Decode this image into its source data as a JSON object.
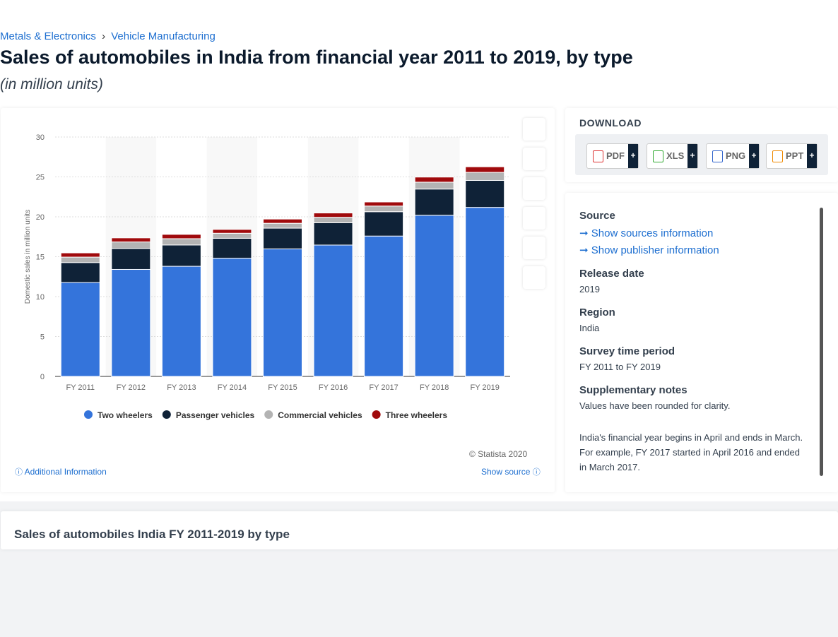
{
  "breadcrumb": [
    "Metals & Electronics",
    "Vehicle Manufacturing"
  ],
  "breadcrumb_separator": "›",
  "title": "Sales of automobiles in India from financial year 2011 to 2019, by type",
  "subtitle": "(in million units)",
  "chart_data": {
    "type": "bar",
    "stacked": true,
    "ylabel": "Domestic sales in million units",
    "categories": [
      "FY 2011",
      "FY 2012",
      "FY 2013",
      "FY 2014",
      "FY 2015",
      "FY 2016",
      "FY 2017",
      "FY 2018",
      "FY 2019"
    ],
    "series": [
      {
        "name": "Two wheelers",
        "color": "#3474db",
        "values": [
          11.77,
          13.41,
          13.8,
          14.81,
          15.98,
          16.46,
          17.59,
          20.19,
          21.18
        ]
      },
      {
        "name": "Passenger vehicles",
        "color": "#0f2237",
        "values": [
          2.5,
          2.63,
          2.67,
          2.5,
          2.6,
          2.79,
          3.05,
          3.29,
          3.38
        ]
      },
      {
        "name": "Commercial vehicles",
        "color": "#b3b3b3",
        "values": [
          0.68,
          0.81,
          0.79,
          0.63,
          0.61,
          0.69,
          0.71,
          0.86,
          1.01
        ]
      },
      {
        "name": "Three wheelers",
        "color": "#a00a0c",
        "values": [
          0.53,
          0.51,
          0.54,
          0.48,
          0.53,
          0.54,
          0.51,
          0.64,
          0.7
        ]
      }
    ],
    "ylim": [
      0,
      30
    ],
    "yticks": [
      0,
      5,
      10,
      15,
      20,
      25,
      30
    ],
    "grid": true,
    "legend": "bottom"
  },
  "credit": "© Statista 2020",
  "additional_info": "Additional Information",
  "show_source": "Show source",
  "download": {
    "title": "DOWNLOAD",
    "formats": [
      "PDF",
      "XLS",
      "PNG",
      "PPT"
    ],
    "plus": "+"
  },
  "details": {
    "source_label": "Source",
    "source_links": [
      "Show sources information",
      "Show publisher information"
    ],
    "release_label": "Release date",
    "release": "2019",
    "region_label": "Region",
    "region": "India",
    "period_label": "Survey time period",
    "period": "FY 2011 to FY 2019",
    "notes_label": "Supplementary notes",
    "notes": [
      "Values have been rounded for clarity.",
      "India's financial year begins in April and ends in March. For example, FY 2017 started in April 2016 and ended in March 2017."
    ]
  },
  "section_title": "Sales of automobiles India FY 2011-2019 by type"
}
